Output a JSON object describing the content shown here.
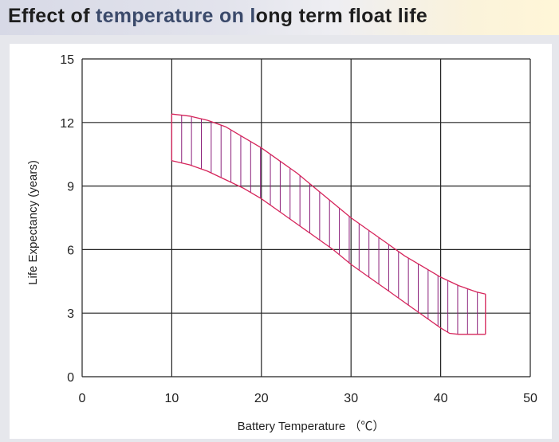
{
  "header": {
    "title_part1": "Effect of ",
    "title_part2": "temperature on l",
    "title_part3": "ong term float life"
  },
  "colors": {
    "band": "#d6245a",
    "hatch": "#8a1f7a",
    "grid": "#222222"
  },
  "chart_data": {
    "type": "area",
    "title": "Effect of temperature on long term float life",
    "xlabel": "Battery Temperature （℃）",
    "ylabel": "Life Expectancy (years)",
    "xlim": [
      0,
      50
    ],
    "ylim": [
      0,
      15
    ],
    "x_ticks": [
      "0",
      "10",
      "20",
      "30",
      "40",
      "50"
    ],
    "y_ticks": [
      "0",
      "3",
      "6",
      "9",
      "12",
      "15"
    ],
    "grid": true,
    "series": [
      {
        "name": "",
        "values_upper": [
          [
            10,
            12.4
          ],
          [
            12,
            12.3
          ],
          [
            14,
            12.1
          ],
          [
            16,
            11.8
          ],
          [
            18,
            11.3
          ],
          [
            20,
            10.8
          ],
          [
            22,
            10.2
          ],
          [
            24,
            9.6
          ],
          [
            26,
            8.9
          ],
          [
            28,
            8.2
          ],
          [
            30,
            7.5
          ],
          [
            32,
            6.9
          ],
          [
            34,
            6.3
          ],
          [
            36,
            5.7
          ],
          [
            38,
            5.2
          ],
          [
            40,
            4.7
          ],
          [
            42,
            4.3
          ],
          [
            44,
            4.0
          ],
          [
            45,
            3.9
          ]
        ],
        "values_lower": [
          [
            10,
            10.2
          ],
          [
            12,
            10.0
          ],
          [
            14,
            9.7
          ],
          [
            16,
            9.3
          ],
          [
            18,
            8.9
          ],
          [
            20,
            8.4
          ],
          [
            22,
            7.8
          ],
          [
            24,
            7.2
          ],
          [
            26,
            6.6
          ],
          [
            28,
            6.0
          ],
          [
            30,
            5.3
          ],
          [
            32,
            4.7
          ],
          [
            34,
            4.1
          ],
          [
            36,
            3.5
          ],
          [
            38,
            2.9
          ],
          [
            40,
            2.3
          ],
          [
            41,
            2.05
          ],
          [
            42,
            2.0
          ],
          [
            45,
            2.0
          ]
        ]
      }
    ]
  }
}
